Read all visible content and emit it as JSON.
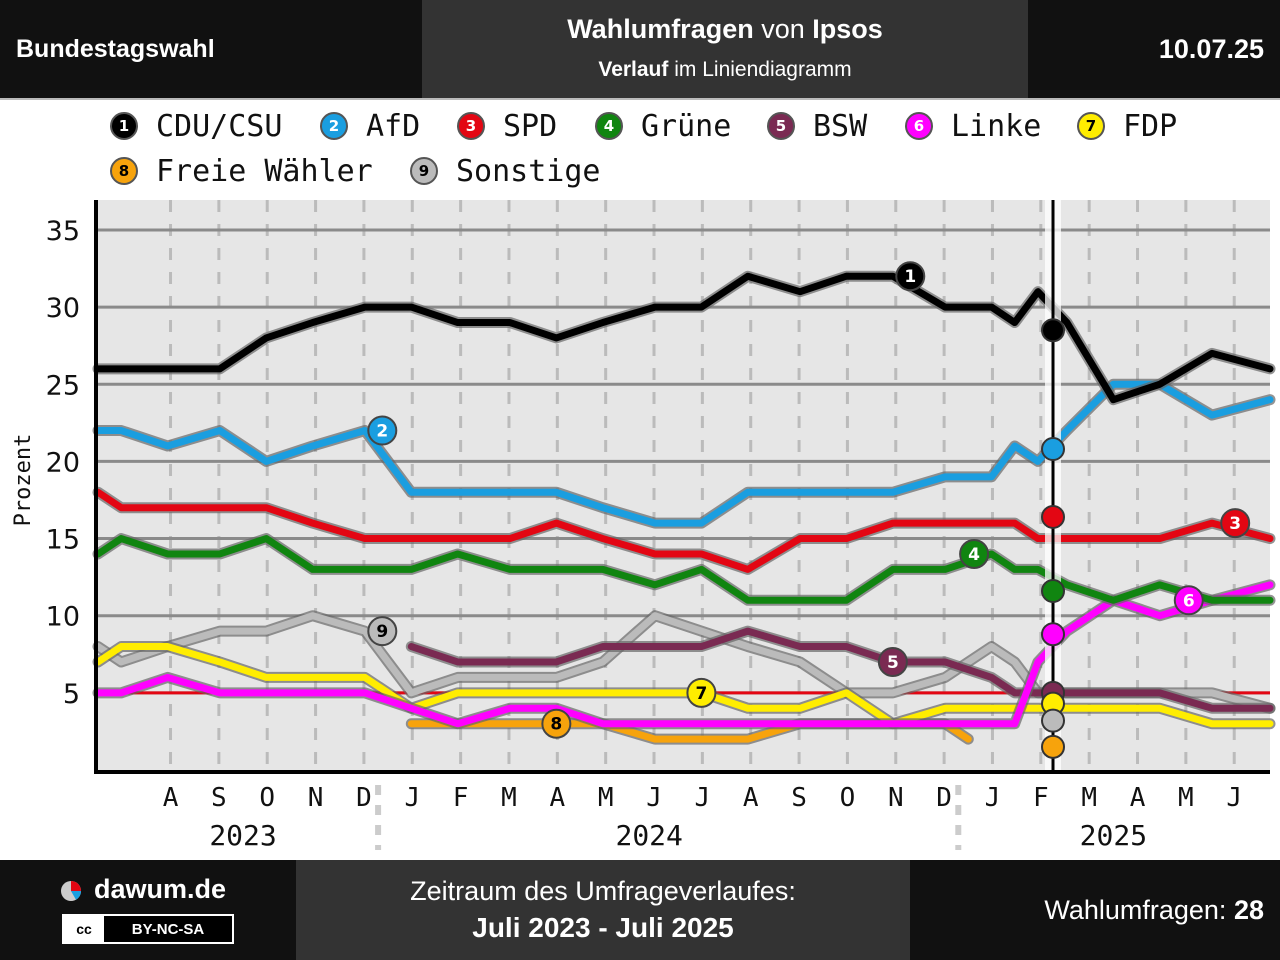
{
  "header": {
    "left_title": "Bundestagswahl",
    "title_bold": "Wahlumfragen",
    "title_mid": " von ",
    "title_institute": "Ipsos",
    "subtitle_bold": "Verlauf",
    "subtitle_rest": " im Liniendiagramm",
    "date": "10.07.25"
  },
  "footer": {
    "brand": "dawum.de",
    "license": "BY-NC-SA",
    "license_icon": "cc",
    "period_label": "Zeitraum des Umfrageverlaufes:",
    "period_value": "Juli 2023 - Juli 2025",
    "polls_label": "Wahlumfragen: ",
    "polls_count": "28"
  },
  "chart_data": {
    "type": "line",
    "ylabel": "Prozent",
    "ylim": [
      0,
      37
    ],
    "yticks": [
      5,
      10,
      15,
      20,
      25,
      30,
      35
    ],
    "x_range": [
      2023.5,
      2025.52
    ],
    "month_ticks": [
      "A",
      "S",
      "O",
      "N",
      "D",
      "J",
      "F",
      "M",
      "A",
      "M",
      "J",
      "J",
      "A",
      "S",
      "O",
      "N",
      "D",
      "J",
      "F",
      "M",
      "A",
      "M",
      "J"
    ],
    "years": [
      "2023",
      "2024",
      "2025"
    ],
    "event_line_x": 2025.146,
    "grid": true,
    "legend_position": "top",
    "series": [
      {
        "id": 1,
        "name": "CDU/CSU",
        "color": "#000000",
        "num_color": "#ffffff",
        "label_x": 2024.9,
        "x": [
          2023.5,
          2023.54,
          2023.62,
          2023.71,
          2023.79,
          2023.87,
          2023.96,
          2024.04,
          2024.12,
          2024.21,
          2024.29,
          2024.37,
          2024.46,
          2024.54,
          2024.62,
          2024.71,
          2024.79,
          2024.87,
          2024.96,
          2025.04,
          2025.08,
          2025.12,
          2025.17,
          2025.25,
          2025.33,
          2025.42,
          2025.52
        ],
        "values": [
          26,
          26,
          26,
          26,
          28,
          29,
          30,
          30,
          29,
          29,
          28,
          29,
          30,
          30,
          32,
          31,
          32,
          32,
          30,
          30,
          29,
          31,
          29,
          24,
          25,
          27,
          26
        ]
      },
      {
        "id": 2,
        "name": "AfD",
        "color": "#1a9ee0",
        "num_color": "#ffffff",
        "label_x": 2023.99,
        "x": [
          2023.5,
          2023.54,
          2023.62,
          2023.71,
          2023.79,
          2023.87,
          2023.96,
          2024.04,
          2024.12,
          2024.21,
          2024.29,
          2024.37,
          2024.46,
          2024.54,
          2024.62,
          2024.71,
          2024.79,
          2024.87,
          2024.96,
          2025.04,
          2025.08,
          2025.12,
          2025.17,
          2025.25,
          2025.33,
          2025.42,
          2025.52
        ],
        "values": [
          22,
          22,
          21,
          22,
          20,
          21,
          22,
          18,
          18,
          18,
          18,
          17,
          16,
          16,
          18,
          18,
          18,
          18,
          19,
          19,
          21,
          20,
          22,
          25,
          25,
          23,
          24
        ]
      },
      {
        "id": 3,
        "name": "SPD",
        "color": "#e30613",
        "num_color": "#ffffff",
        "label_x": 2025.46,
        "x": [
          2023.5,
          2023.54,
          2023.62,
          2023.71,
          2023.79,
          2023.87,
          2023.96,
          2024.04,
          2024.12,
          2024.21,
          2024.29,
          2024.37,
          2024.46,
          2024.54,
          2024.62,
          2024.71,
          2024.79,
          2024.87,
          2024.96,
          2025.04,
          2025.08,
          2025.12,
          2025.17,
          2025.25,
          2025.33,
          2025.42,
          2025.52
        ],
        "values": [
          18,
          17,
          17,
          17,
          17,
          16,
          15,
          15,
          15,
          15,
          16,
          15,
          14,
          14,
          13,
          15,
          15,
          16,
          16,
          16,
          16,
          15,
          15,
          15,
          15,
          16,
          15
        ]
      },
      {
        "id": 4,
        "name": "Grüne",
        "color": "#108510",
        "num_color": "#ffffff",
        "label_x": 2025.01,
        "x": [
          2023.5,
          2023.54,
          2023.62,
          2023.71,
          2023.79,
          2023.87,
          2023.96,
          2024.04,
          2024.12,
          2024.21,
          2024.29,
          2024.37,
          2024.46,
          2024.54,
          2024.62,
          2024.71,
          2024.79,
          2024.87,
          2024.96,
          2025.04,
          2025.08,
          2025.12,
          2025.17,
          2025.25,
          2025.33,
          2025.42,
          2025.52
        ],
        "values": [
          14,
          15,
          14,
          14,
          15,
          13,
          13,
          13,
          14,
          13,
          13,
          13,
          12,
          13,
          11,
          11,
          11,
          13,
          13,
          14,
          13,
          13,
          12,
          11,
          12,
          11,
          11
        ]
      },
      {
        "id": 5,
        "name": "BSW",
        "color": "#7a2a52",
        "num_color": "#ffffff",
        "label_x": 2024.87,
        "x": [
          2024.04,
          2024.12,
          2024.21,
          2024.29,
          2024.37,
          2024.46,
          2024.54,
          2024.62,
          2024.71,
          2024.79,
          2024.87,
          2024.96,
          2025.04,
          2025.08,
          2025.17,
          2025.25,
          2025.33,
          2025.42,
          2025.52
        ],
        "values": [
          8,
          7,
          7,
          7,
          8,
          8,
          8,
          9,
          8,
          8,
          7,
          7,
          6,
          5,
          5,
          5,
          5,
          4,
          4
        ]
      },
      {
        "id": 6,
        "name": "Linke",
        "color": "#ff00ff",
        "num_color": "#ffffff",
        "label_x": 2025.38,
        "x": [
          2023.5,
          2023.54,
          2023.62,
          2023.71,
          2023.79,
          2023.87,
          2023.96,
          2024.04,
          2024.12,
          2024.21,
          2024.29,
          2024.37,
          2024.46,
          2024.54,
          2024.62,
          2024.71,
          2024.79,
          2024.87,
          2024.96,
          2025.04,
          2025.08,
          2025.12,
          2025.17,
          2025.25,
          2025.33,
          2025.42,
          2025.52
        ],
        "values": [
          5,
          5,
          6,
          5,
          5,
          5,
          5,
          4,
          3,
          4,
          4,
          3,
          3,
          3,
          3,
          3,
          3,
          3,
          3,
          3,
          3,
          7,
          9,
          11,
          10,
          11,
          12
        ]
      },
      {
        "id": 7,
        "name": "FDP",
        "color": "#ffed00",
        "num_color": "#000000",
        "label_x": 2024.54,
        "x": [
          2023.5,
          2023.54,
          2023.62,
          2023.71,
          2023.79,
          2023.87,
          2023.96,
          2024.04,
          2024.12,
          2024.21,
          2024.29,
          2024.37,
          2024.46,
          2024.54,
          2024.62,
          2024.71,
          2024.79,
          2024.87,
          2024.96,
          2025.04,
          2025.08,
          2025.12,
          2025.17,
          2025.25,
          2025.33,
          2025.42,
          2025.52
        ],
        "values": [
          7,
          8,
          8,
          7,
          6,
          6,
          6,
          4,
          5,
          5,
          5,
          5,
          5,
          5,
          4,
          4,
          5,
          3,
          4,
          4,
          4,
          4,
          4,
          4,
          4,
          3,
          3
        ]
      },
      {
        "id": 8,
        "name": "Freie Wähler",
        "color": "#f7a30c",
        "num_color": "#000000",
        "label_x": 2024.29,
        "x": [
          2024.04,
          2024.12,
          2024.21,
          2024.29,
          2024.37,
          2024.46,
          2024.54,
          2024.62,
          2024.71,
          2024.79,
          2024.87,
          2024.96,
          2025.0
        ],
        "values": [
          3,
          3,
          3,
          3,
          3,
          2,
          2,
          2,
          3,
          3,
          3,
          3,
          2
        ]
      },
      {
        "id": 9,
        "name": "Sonstige",
        "color": "#bbbbbb",
        "num_color": "#000000",
        "label_x": 2023.99,
        "x": [
          2023.5,
          2023.54,
          2023.62,
          2023.71,
          2023.79,
          2023.87,
          2023.96,
          2024.04,
          2024.12,
          2024.21,
          2024.29,
          2024.37,
          2024.46,
          2024.54,
          2024.62,
          2024.71,
          2024.79,
          2024.87,
          2024.96,
          2025.04,
          2025.08,
          2025.12,
          2025.17,
          2025.25,
          2025.33,
          2025.42,
          2025.52
        ],
        "values": [
          8,
          7,
          8,
          9,
          9,
          10,
          9,
          5,
          6,
          6,
          6,
          7,
          10,
          9,
          8,
          7,
          5,
          5,
          6,
          8,
          7,
          5,
          5,
          5,
          5,
          5,
          4
        ]
      }
    ],
    "election_markers": [
      {
        "name": "CDU/CSU",
        "value": 28.5
      },
      {
        "name": "AfD",
        "value": 20.8
      },
      {
        "name": "SPD",
        "value": 16.4
      },
      {
        "name": "Grüne",
        "value": 11.6
      },
      {
        "name": "Linke",
        "value": 8.8
      },
      {
        "name": "BSW",
        "value": 5.0
      },
      {
        "name": "FDP",
        "value": 4.3
      },
      {
        "name": "Sonstige",
        "value": 3.2
      },
      {
        "name": "Freie Wähler",
        "value": 1.5
      }
    ]
  }
}
